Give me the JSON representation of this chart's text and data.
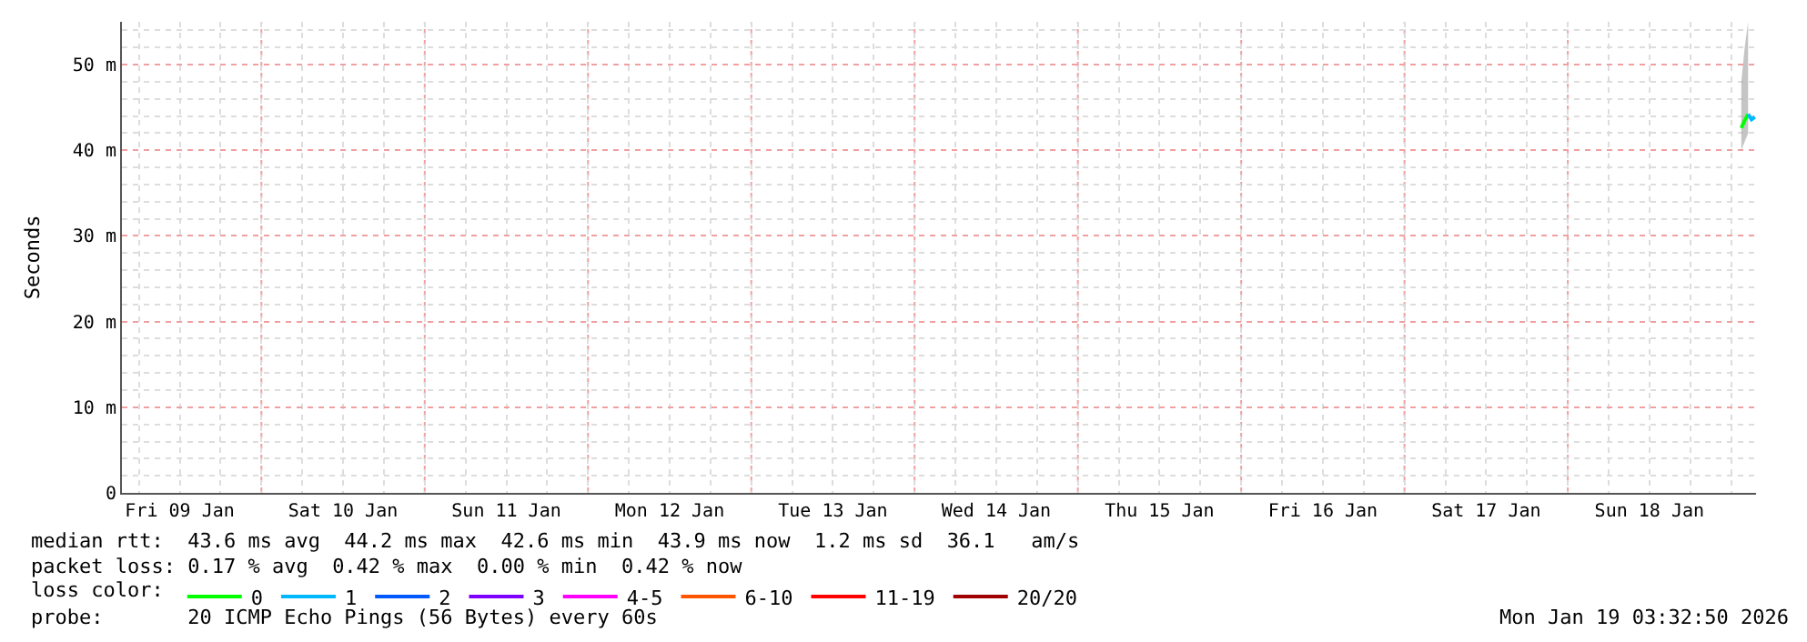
{
  "chart_data": {
    "type": "line",
    "ylabel": "Seconds",
    "legend_title": "loss color:",
    "legend": "bottom",
    "grid": true,
    "marker": "none",
    "line_style": "solid",
    "xlim": [
      "2026-01-09T03:30",
      "2026-01-19T03:40"
    ],
    "xticks": [
      {
        "value": "2026-01-09T12:00",
        "label": "Fri 09 Jan"
      },
      {
        "value": "2026-01-10T12:00",
        "label": "Sat 10 Jan"
      },
      {
        "value": "2026-01-11T12:00",
        "label": "Sun 11 Jan"
      },
      {
        "value": "2026-01-12T12:00",
        "label": "Mon 12 Jan"
      },
      {
        "value": "2026-01-13T12:00",
        "label": "Tue 13 Jan"
      },
      {
        "value": "2026-01-14T12:00",
        "label": "Wed 14 Jan"
      },
      {
        "value": "2026-01-15T12:00",
        "label": "Thu 15 Jan"
      },
      {
        "value": "2026-01-16T12:00",
        "label": "Fri 16 Jan"
      },
      {
        "value": "2026-01-17T12:00",
        "label": "Sat 17 Jan"
      },
      {
        "value": "2026-01-18T12:00",
        "label": "Sun 18 Jan"
      }
    ],
    "ylim": [
      0,
      55
    ],
    "yticks": [
      0,
      {
        "value": 10,
        "label": "10 m"
      },
      {
        "value": 20,
        "label": "20 m"
      },
      {
        "value": 30,
        "label": "30 m"
      },
      {
        "value": 40,
        "label": "40 m"
      },
      {
        "value": 50,
        "label": "50 m"
      }
    ],
    "series": [
      {
        "name": "0",
        "color": "#00ff00",
        "x": [
          "2026-01-19T01:30",
          "2026-01-19T02:00",
          "2026-01-19T02:30"
        ],
        "values": [
          42.6,
          43.5,
          44.2
        ],
        "lower": [
          40,
          41,
          42
        ],
        "upper": [
          48,
          52,
          55
        ]
      },
      {
        "name": "1",
        "color": "#00b8ff",
        "x": [
          "2026-01-19T02:30",
          "2026-01-19T03:00",
          "2026-01-19T03:30"
        ],
        "values": [
          44.2,
          43.6,
          43.9
        ]
      },
      {
        "name": "2",
        "color": "#0059ff"
      },
      {
        "name": "3",
        "color": "#7e00ff"
      },
      {
        "name": "4-5",
        "color": "#ff00ff"
      },
      {
        "name": "6-10",
        "color": "#ff5500"
      },
      {
        "name": "11-19",
        "color": "#ff0000"
      },
      {
        "name": "20/20",
        "color": "#a10000"
      }
    ],
    "annotations": [
      "median rtt:  43.6 ms avg  44.2 ms max  42.6 ms min  43.9 ms now  1.2 ms sd  36.1   am/s",
      "packet loss: 0.17 % avg  0.42 % max  0.00 % min  0.42 % now",
      "probe:       20 ICMP Echo Pings (56 Bytes) every 60s",
      "Mon Jan 19 03:32:50 2026"
    ]
  }
}
